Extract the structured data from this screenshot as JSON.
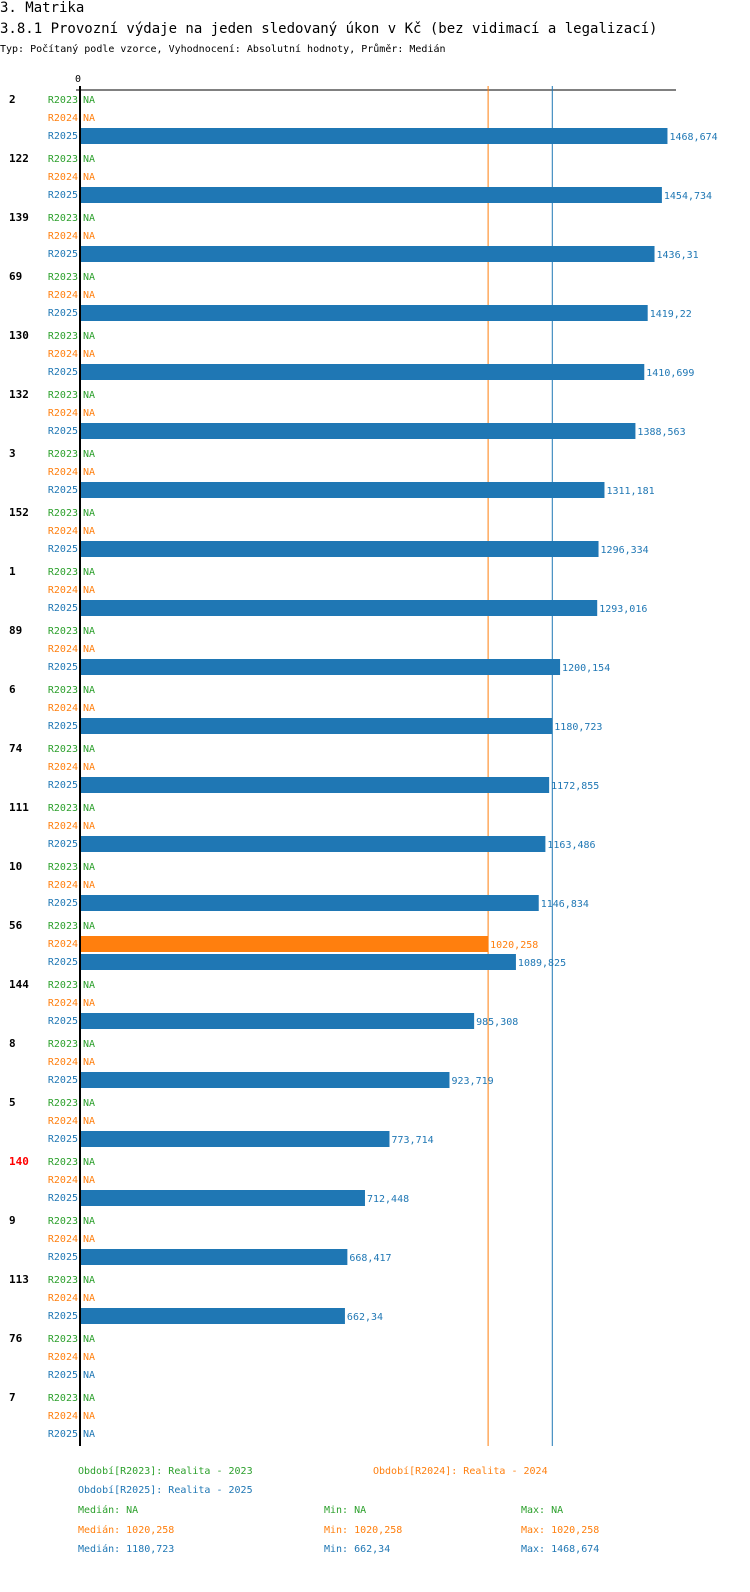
{
  "header": {
    "section": "3. Matrika",
    "title": "3.8.1 Provozní výdaje na jeden sledovaný úkon v Kč (bez vidimací a legalizací)",
    "subtitle": "Typ: Počítaný podle vzorce, Vyhodnocení: Absolutní hodnoty, Průměr: Medián"
  },
  "colors": {
    "r2023": "#2ca02c",
    "r2024": "#ff7f0e",
    "r2025": "#1f77b4",
    "highlight": "#ff0000",
    "text": "#000000"
  },
  "chart_data": {
    "type": "bar",
    "orientation": "horizontal",
    "title": "3.8.1 Provozní výdaje na jeden sledovaný úkon v Kč (bez vidimací a legalizací)",
    "axis_origin_label": "0",
    "xlim": [
      0,
      1500
    ],
    "na_label": "NA",
    "series_names": [
      "R2023",
      "R2024",
      "R2025"
    ],
    "highlight_category": "140",
    "medians": {
      "R2024": 1020.258,
      "R2025": 1180.723
    },
    "categories": [
      "2",
      "122",
      "139",
      "69",
      "130",
      "132",
      "3",
      "152",
      "1",
      "89",
      "6",
      "74",
      "111",
      "10",
      "56",
      "144",
      "8",
      "5",
      "140",
      "9",
      "113",
      "76",
      "7"
    ],
    "series": [
      {
        "name": "R2023",
        "color": "#2ca02c",
        "values": [
          null,
          null,
          null,
          null,
          null,
          null,
          null,
          null,
          null,
          null,
          null,
          null,
          null,
          null,
          null,
          null,
          null,
          null,
          null,
          null,
          null,
          null,
          null
        ]
      },
      {
        "name": "R2024",
        "color": "#ff7f0e",
        "values": [
          null,
          null,
          null,
          null,
          null,
          null,
          null,
          null,
          null,
          null,
          null,
          null,
          null,
          null,
          1020.258,
          null,
          null,
          null,
          null,
          null,
          null,
          null,
          null
        ]
      },
      {
        "name": "R2025",
        "color": "#1f77b4",
        "values": [
          1468.674,
          1454.734,
          1436.31,
          1419.22,
          1410.699,
          1388.563,
          1311.181,
          1296.334,
          1293.016,
          1200.154,
          1180.723,
          1172.855,
          1163.486,
          1146.834,
          1089.825,
          985.308,
          923.719,
          773.714,
          712.448,
          668.417,
          662.34,
          null,
          null
        ]
      }
    ],
    "value_labels": {
      "R2024": [
        null,
        null,
        null,
        null,
        null,
        null,
        null,
        null,
        null,
        null,
        null,
        null,
        null,
        null,
        "1020,258",
        null,
        null,
        null,
        null,
        null,
        null,
        null,
        null
      ],
      "R2025": [
        "1468,674",
        "1454,734",
        "1436,31",
        "1419,22",
        "1410,699",
        "1388,563",
        "1311,181",
        "1296,334",
        "1293,016",
        "1200,154",
        "1180,723",
        "1172,855",
        "1163,486",
        "1146,834",
        "1089,825",
        "985,308",
        "923,719",
        "773,714",
        "712,448",
        "668,417",
        "662,34",
        null,
        null
      ]
    }
  },
  "legend": {
    "r2023": "Období[R2023]: Realita - 2023",
    "r2024": "Období[R2024]: Realita - 2024",
    "r2025": "Období[R2025]: Realita - 2025",
    "stats": {
      "r2023": {
        "median": "Medián: NA",
        "min": "Min: NA",
        "max": "Max: NA"
      },
      "r2024": {
        "median": "Medián: 1020,258",
        "min": "Min: 1020,258",
        "max": "Max: 1020,258"
      },
      "r2025": {
        "median": "Medián: 1180,723",
        "min": "Min: 662,34",
        "max": "Max: 1468,674"
      }
    }
  }
}
